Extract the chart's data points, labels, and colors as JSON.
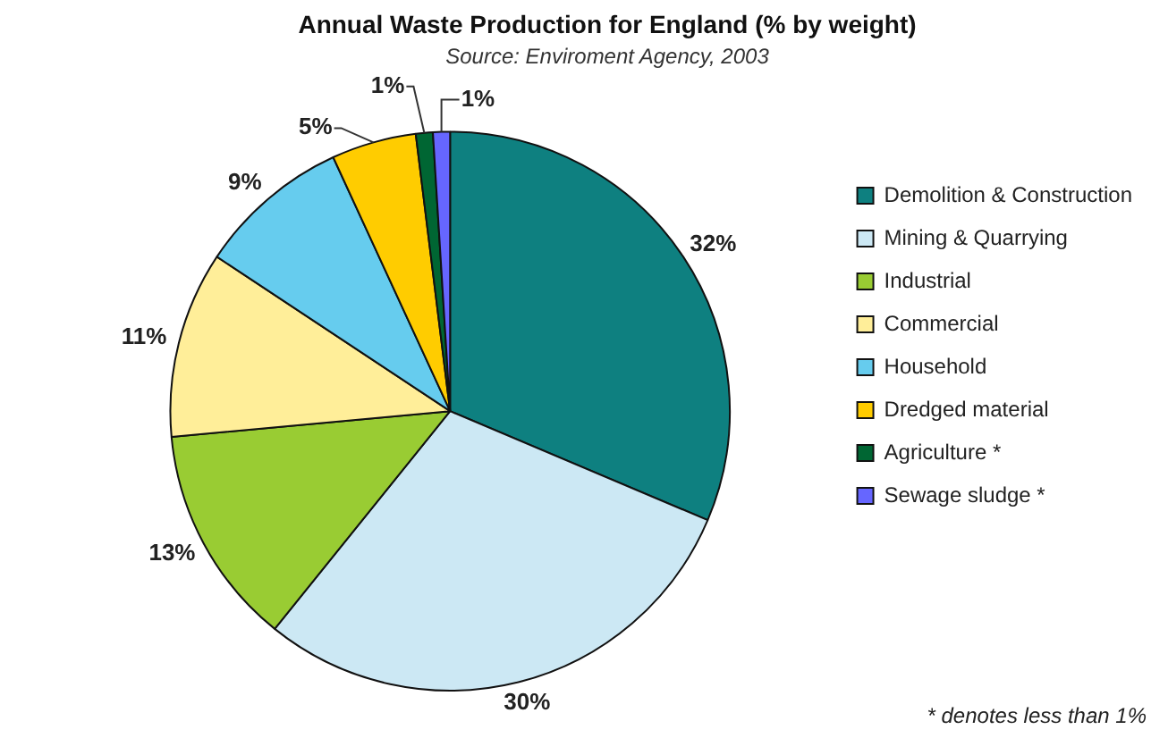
{
  "chart_data": {
    "type": "pie",
    "title": "Annual Waste Production for England (% by weight)",
    "subtitle": "Source: Enviroment Agency, 2003",
    "categories": [
      "Demolition & Construction",
      "Mining & Quarrying",
      "Industrial",
      "Commercial",
      "Household",
      "Dredged material",
      "Agriculture *",
      "Sewage sludge *"
    ],
    "values": [
      32,
      30,
      13,
      11,
      9,
      5,
      1,
      1
    ],
    "value_labels": [
      "32%",
      "30%",
      "13%",
      "11%",
      "9%",
      "5%",
      "1%",
      "1%"
    ],
    "colors": [
      "#0e8080",
      "#cce8f4",
      "#99cc33",
      "#ffee99",
      "#66ccee",
      "#ffcc00",
      "#006633",
      "#6666ff"
    ],
    "legend": "right",
    "annotations": [
      "* denotes less than 1%"
    ]
  }
}
